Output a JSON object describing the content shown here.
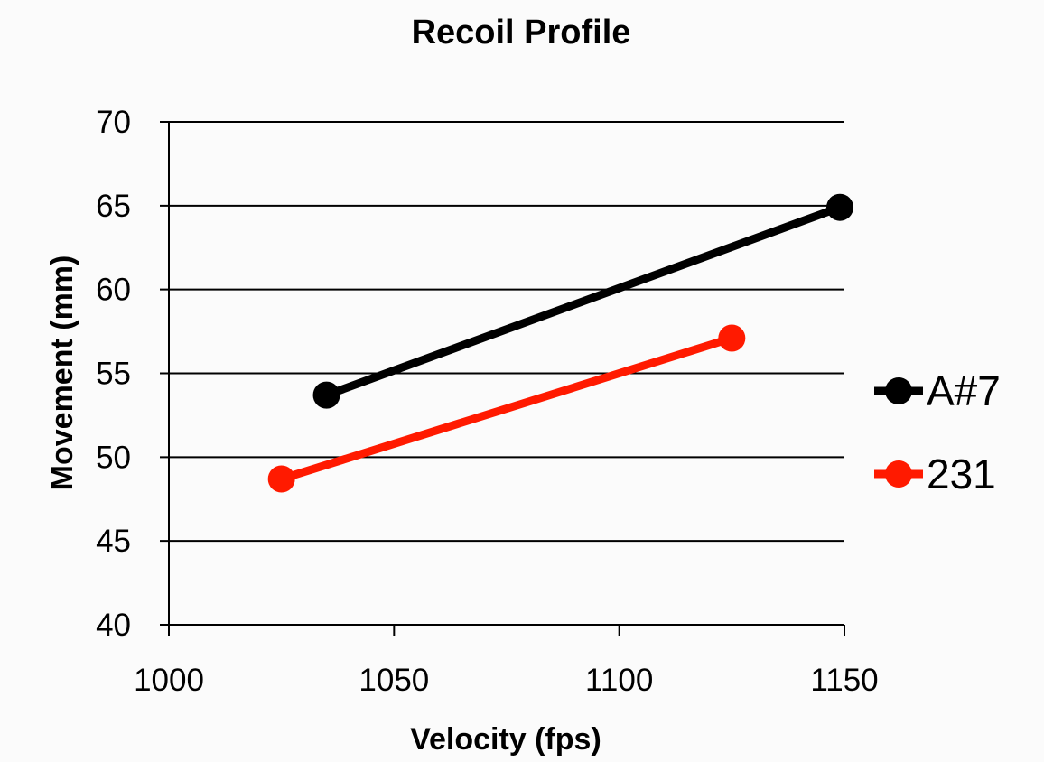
{
  "chart_data": {
    "type": "line",
    "title": "Recoil Profile",
    "xlabel": "Velocity (fps)",
    "ylabel": "Movement (mm)",
    "xlim": [
      1000,
      1150
    ],
    "ylim": [
      40,
      70
    ],
    "xticks": [
      1000,
      1050,
      1100,
      1150
    ],
    "yticks": [
      40,
      45,
      50,
      55,
      60,
      65,
      70
    ],
    "grid": "horizontal",
    "legend": "right",
    "series": [
      {
        "name": "A#7",
        "color": "#000000",
        "points": [
          [
            1035,
            53.7
          ],
          [
            1149,
            64.9
          ]
        ]
      },
      {
        "name": "231",
        "color": "#ff1a00",
        "points": [
          [
            1025,
            48.7
          ],
          [
            1125,
            57.1
          ]
        ]
      }
    ]
  }
}
